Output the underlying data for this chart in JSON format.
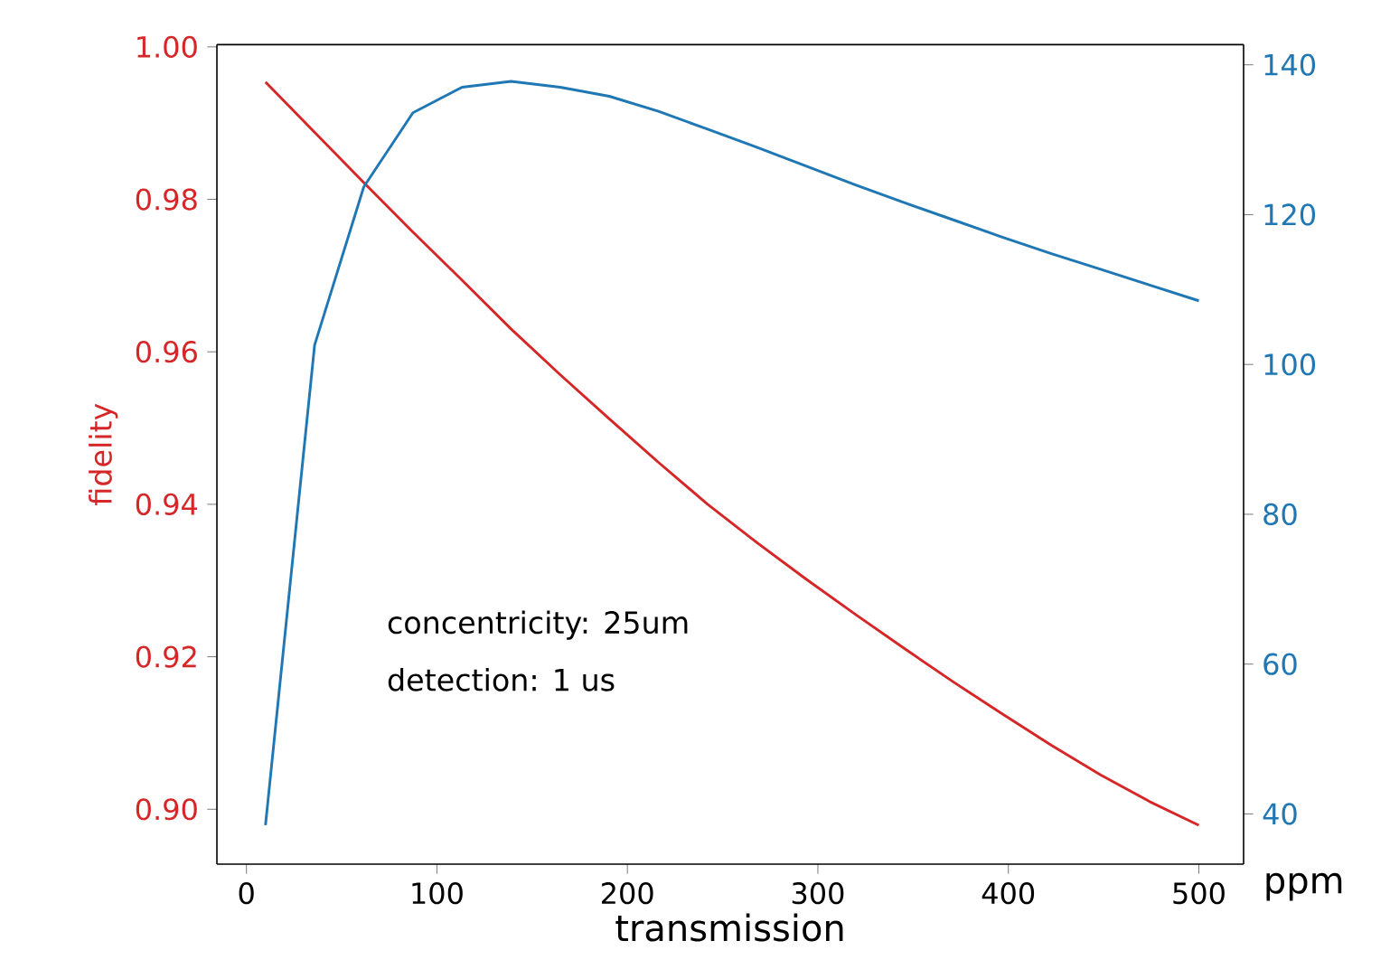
{
  "chart_data": {
    "type": "line",
    "xlabel": "transmission",
    "ylabel": "fidelity",
    "x": [
      10,
      35.8,
      61.6,
      87.4,
      113.2,
      138.9,
      164.7,
      190.5,
      216.3,
      242.1,
      267.9,
      293.7,
      319.5,
      345.3,
      371.1,
      396.8,
      422.6,
      448.4,
      474.2,
      500
    ],
    "series": [
      {
        "color": "#d62728",
        "values": [
          0.9954,
          0.9888,
          0.9822,
          0.9757,
          0.9694,
          0.963,
          0.957,
          0.9512,
          0.9455,
          0.94,
          0.935,
          0.9302,
          0.9256,
          0.9211,
          0.9167,
          0.9125,
          0.9084,
          0.9045,
          0.901,
          0.8979
        ]
      },
      {
        "color": "#1f77b4",
        "axis": "y2",
        "values": [
          38.5,
          102.6,
          123.7,
          133.6,
          137.0,
          137.8,
          137.0,
          135.8,
          133.8,
          131.4,
          129.0,
          126.5,
          124.0,
          121.6,
          119.3,
          117.0,
          114.8,
          112.7,
          110.6,
          108.5
        ]
      }
    ],
    "xlim": [
      -15.5,
      523.5
    ],
    "xticks": [
      0,
      100,
      200,
      300,
      400,
      500
    ],
    "ylim": [
      0.8928,
      1.0003
    ],
    "yticks": [
      {
        "value": 0.9,
        "label": "0.90"
      },
      {
        "value": 0.92,
        "label": "0.92"
      },
      {
        "value": 0.94,
        "label": "0.94"
      },
      {
        "value": 0.96,
        "label": "0.96"
      },
      {
        "value": 0.98,
        "label": "0.98"
      },
      {
        "value": 1.0,
        "label": "1.00"
      }
    ],
    "y2lim": [
      33.3,
      142.7
    ],
    "y2ticks": [
      40,
      60,
      80,
      100,
      120,
      140
    ],
    "annotations": [
      "concentricity: 25um",
      "detection: 1 us",
      "ppm"
    ],
    "grid": false,
    "legend": false,
    "marker": "none",
    "line_style": "solid"
  }
}
